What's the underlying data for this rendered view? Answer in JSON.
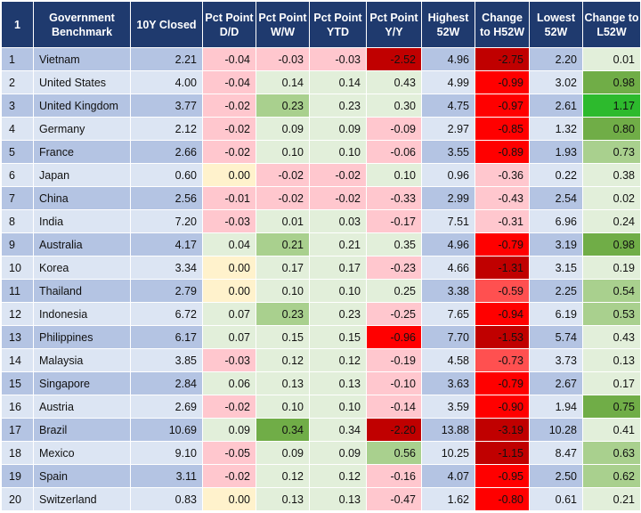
{
  "table": {
    "headers": [
      "1",
      "Government Benchmark",
      "10Y Closed",
      "Pct Point D/D",
      "Pct Point W/W",
      "Pct Point YTD",
      "Pct Point Y/Y",
      "Highest 52W",
      "Change to H52W",
      "Lowest 52W",
      "Change to L52W"
    ],
    "rows": [
      {
        "idx": "1",
        "name": "Vietnam",
        "closed": "2.21",
        "dd": "-0.04",
        "ww": "-0.03",
        "ytd": "-0.03",
        "yy": "-2.52",
        "h52": "4.96",
        "ch52": "-2.75",
        "l52": "2.20",
        "cl52": "0.01"
      },
      {
        "idx": "2",
        "name": "United States",
        "closed": "4.00",
        "dd": "-0.04",
        "ww": "0.14",
        "ytd": "0.14",
        "yy": "0.43",
        "h52": "4.99",
        "ch52": "-0.99",
        "l52": "3.02",
        "cl52": "0.98"
      },
      {
        "idx": "3",
        "name": "United Kingdom",
        "closed": "3.77",
        "dd": "-0.02",
        "ww": "0.23",
        "ytd": "0.23",
        "yy": "0.30",
        "h52": "4.75",
        "ch52": "-0.97",
        "l52": "2.61",
        "cl52": "1.17"
      },
      {
        "idx": "4",
        "name": "Germany",
        "closed": "2.12",
        "dd": "-0.02",
        "ww": "0.09",
        "ytd": "0.09",
        "yy": "-0.09",
        "h52": "2.97",
        "ch52": "-0.85",
        "l52": "1.32",
        "cl52": "0.80"
      },
      {
        "idx": "5",
        "name": "France",
        "closed": "2.66",
        "dd": "-0.02",
        "ww": "0.10",
        "ytd": "0.10",
        "yy": "-0.06",
        "h52": "3.55",
        "ch52": "-0.89",
        "l52": "1.93",
        "cl52": "0.73"
      },
      {
        "idx": "6",
        "name": "Japan",
        "closed": "0.60",
        "dd": "0.00",
        "ww": "-0.02",
        "ytd": "-0.02",
        "yy": "0.10",
        "h52": "0.96",
        "ch52": "-0.36",
        "l52": "0.22",
        "cl52": "0.38"
      },
      {
        "idx": "7",
        "name": "China",
        "closed": "2.56",
        "dd": "-0.01",
        "ww": "-0.02",
        "ytd": "-0.02",
        "yy": "-0.33",
        "h52": "2.99",
        "ch52": "-0.43",
        "l52": "2.54",
        "cl52": "0.02"
      },
      {
        "idx": "8",
        "name": "India",
        "closed": "7.20",
        "dd": "-0.03",
        "ww": "0.01",
        "ytd": "0.03",
        "yy": "-0.17",
        "h52": "7.51",
        "ch52": "-0.31",
        "l52": "6.96",
        "cl52": "0.24"
      },
      {
        "idx": "9",
        "name": "Australia",
        "closed": "4.17",
        "dd": "0.04",
        "ww": "0.21",
        "ytd": "0.21",
        "yy": "0.35",
        "h52": "4.96",
        "ch52": "-0.79",
        "l52": "3.19",
        "cl52": "0.98"
      },
      {
        "idx": "10",
        "name": "Korea",
        "closed": "3.34",
        "dd": "0.00",
        "ww": "0.17",
        "ytd": "0.17",
        "yy": "-0.23",
        "h52": "4.66",
        "ch52": "-1.31",
        "l52": "3.15",
        "cl52": "0.19"
      },
      {
        "idx": "11",
        "name": "Thailand",
        "closed": "2.79",
        "dd": "0.00",
        "ww": "0.10",
        "ytd": "0.10",
        "yy": "0.25",
        "h52": "3.38",
        "ch52": "-0.59",
        "l52": "2.25",
        "cl52": "0.54"
      },
      {
        "idx": "12",
        "name": "Indonesia",
        "closed": "6.72",
        "dd": "0.07",
        "ww": "0.23",
        "ytd": "0.23",
        "yy": "-0.25",
        "h52": "7.65",
        "ch52": "-0.94",
        "l52": "6.19",
        "cl52": "0.53"
      },
      {
        "idx": "13",
        "name": "Philippines",
        "closed": "6.17",
        "dd": "0.07",
        "ww": "0.15",
        "ytd": "0.15",
        "yy": "-0.96",
        "h52": "7.70",
        "ch52": "-1.53",
        "l52": "5.74",
        "cl52": "0.43"
      },
      {
        "idx": "14",
        "name": "Malaysia",
        "closed": "3.85",
        "dd": "-0.03",
        "ww": "0.12",
        "ytd": "0.12",
        "yy": "-0.19",
        "h52": "4.58",
        "ch52": "-0.73",
        "l52": "3.73",
        "cl52": "0.13"
      },
      {
        "idx": "15",
        "name": "Singapore",
        "closed": "2.84",
        "dd": "0.06",
        "ww": "0.13",
        "ytd": "0.13",
        "yy": "-0.10",
        "h52": "3.63",
        "ch52": "-0.79",
        "l52": "2.67",
        "cl52": "0.17"
      },
      {
        "idx": "16",
        "name": "Austria",
        "closed": "2.69",
        "dd": "-0.02",
        "ww": "0.10",
        "ytd": "0.10",
        "yy": "-0.14",
        "h52": "3.59",
        "ch52": "-0.90",
        "l52": "1.94",
        "cl52": "0.75"
      },
      {
        "idx": "17",
        "name": "Brazil",
        "closed": "10.69",
        "dd": "0.09",
        "ww": "0.34",
        "ytd": "0.34",
        "yy": "-2.20",
        "h52": "13.88",
        "ch52": "-3.19",
        "l52": "10.28",
        "cl52": "0.41"
      },
      {
        "idx": "18",
        "name": "Mexico",
        "closed": "9.10",
        "dd": "-0.05",
        "ww": "0.09",
        "ytd": "0.09",
        "yy": "0.56",
        "h52": "10.25",
        "ch52": "-1.15",
        "l52": "8.47",
        "cl52": "0.63"
      },
      {
        "idx": "19",
        "name": "Spain",
        "closed": "3.11",
        "dd": "-0.02",
        "ww": "0.12",
        "ytd": "0.12",
        "yy": "-0.16",
        "h52": "4.07",
        "ch52": "-0.95",
        "l52": "2.50",
        "cl52": "0.62"
      },
      {
        "idx": "20",
        "name": "Switzerland",
        "closed": "0.83",
        "dd": "0.00",
        "ww": "0.13",
        "ytd": "0.13",
        "yy": "-0.47",
        "h52": "1.62",
        "ch52": "-0.80",
        "l52": "0.61",
        "cl52": "0.21"
      }
    ]
  },
  "colors": {
    "header_bg": "#1f3a6e",
    "header_text": "#ffffff",
    "band_odd": "#b4c4e3",
    "band_even": "#dce5f3",
    "neg_light": "#ffc7ce",
    "neutral": "#fff2cc",
    "pos_light": "#e2efda",
    "pos_mid": "#a9d08e",
    "pos_strong": "#70ad47",
    "pos_max": "#2dba2d",
    "neg_mid": "#ff5050",
    "neg_strong": "#ff0000",
    "neg_deep": "#c00000"
  }
}
